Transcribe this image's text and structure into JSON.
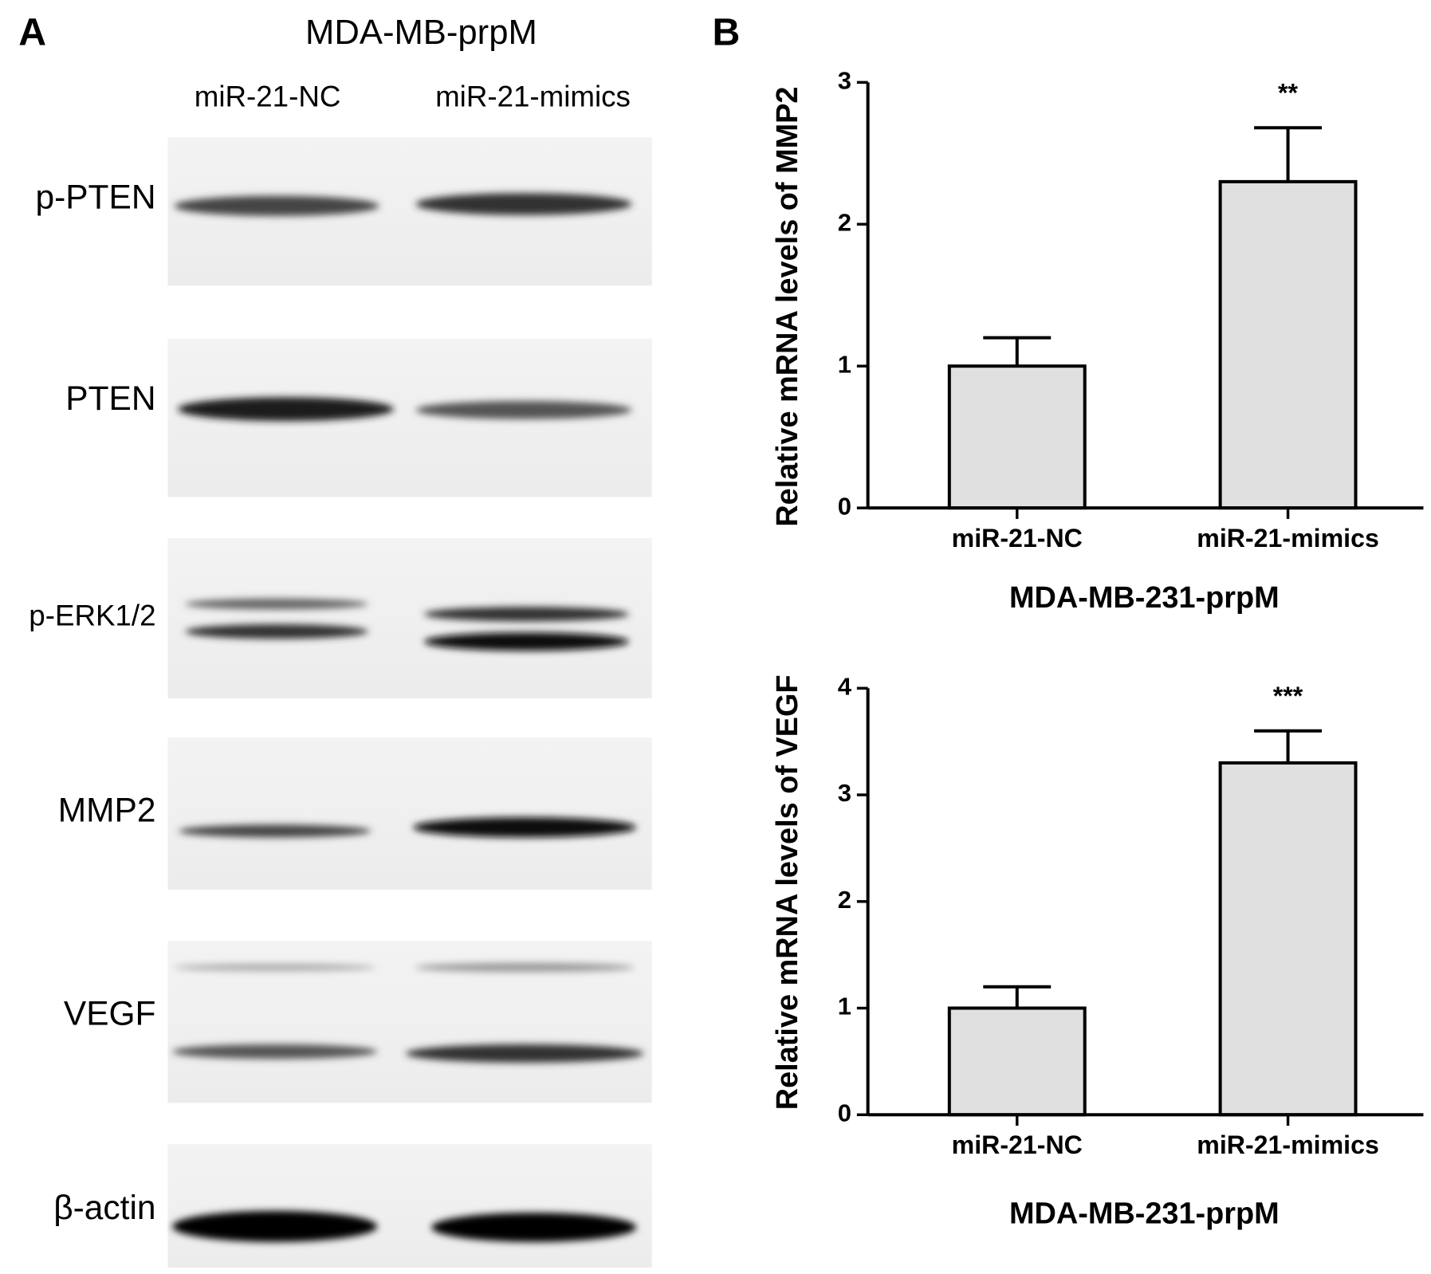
{
  "panel_labels": [
    "A",
    "B"
  ],
  "western_blot": {
    "title": "MDA-MB-prpM",
    "lanes": [
      "miR-21-NC",
      "miR-21-mimics"
    ],
    "proteins": [
      "p-PTEN",
      "PTEN",
      "p-ERK1/2",
      "MMP2",
      "VEGF",
      "β-actin"
    ]
  },
  "chart_data": [
    {
      "type": "bar",
      "y_label": "Relative mRNA levels of MMP2",
      "x_label": "MDA-MB-231-prpM",
      "categories": [
        "miR-21-NC",
        "miR-21-mimics"
      ],
      "values": [
        1.0,
        2.3
      ],
      "errors": [
        0.2,
        0.38
      ],
      "annotation": {
        "text": "**",
        "category": "miR-21-mimics"
      },
      "color": "#e0e0e0",
      "ylim": [
        0,
        3
      ],
      "yticks": [
        0,
        1,
        2,
        3
      ]
    },
    {
      "type": "bar",
      "y_label": "Relative mRNA levels of VEGF",
      "x_label": "MDA-MB-231-prpM",
      "categories": [
        "miR-21-NC",
        "miR-21-mimics"
      ],
      "values": [
        1.0,
        3.3
      ],
      "errors": [
        0.2,
        0.3
      ],
      "annotation": {
        "text": "***",
        "category": "miR-21-mimics"
      },
      "color": "#e0e0e0",
      "ylim": [
        0,
        4
      ],
      "yticks": [
        0,
        1,
        2,
        3,
        4
      ]
    }
  ]
}
